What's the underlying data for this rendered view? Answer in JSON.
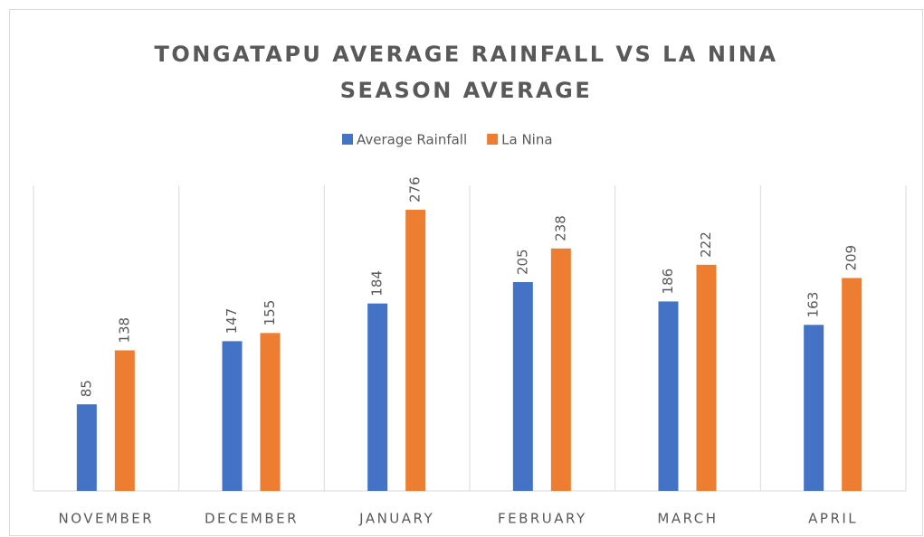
{
  "chart_data": {
    "type": "bar",
    "title": "TONGATAPU AVERAGE RAINFALL VS LA NINA SEASON AVERAGE",
    "categories": [
      "NOVEMBER",
      "DECEMBER",
      "JANUARY",
      "FEBRUARY",
      "MARCH",
      "APRIL"
    ],
    "series": [
      {
        "name": "Average Rainfall",
        "color": "#4472c4",
        "values": [
          85,
          147,
          184,
          205,
          186,
          163
        ]
      },
      {
        "name": "La Nina",
        "color": "#ed7d31",
        "values": [
          138,
          155,
          276,
          238,
          222,
          209
        ]
      }
    ],
    "ylim": [
      0,
      300
    ],
    "legend": "top"
  }
}
